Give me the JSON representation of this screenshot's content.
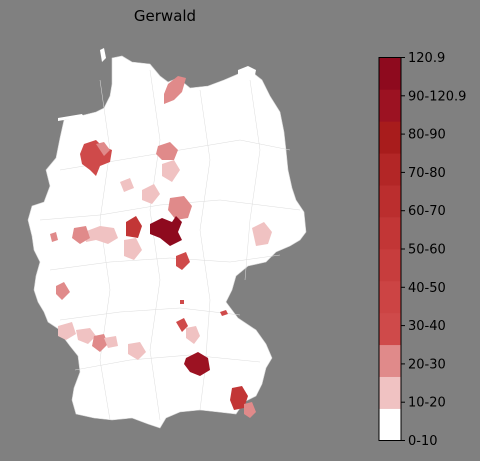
{
  "title": "Gerwald",
  "colorbar": {
    "min": 0,
    "max": 120.9,
    "bins": [
      {
        "label": "0-10",
        "color": "#ffffff"
      },
      {
        "label": "10-20",
        "color": "#f0c2c2"
      },
      {
        "label": "20-30",
        "color": "#e08a8a"
      },
      {
        "label": "30-40",
        "color": "#cf4a4a"
      },
      {
        "label": "40-50",
        "color": "#cc4444"
      },
      {
        "label": "50-60",
        "color": "#c73d3d"
      },
      {
        "label": "60-70",
        "color": "#c23636"
      },
      {
        "label": "70-80",
        "color": "#bb2e2e"
      },
      {
        "label": "80-90",
        "color": "#b32626"
      },
      {
        "label": "90-120.9",
        "color": "#a81c1c"
      },
      {
        "label": "",
        "color": "#9c1222"
      },
      {
        "label": "120.9",
        "color": "#8e0a1e"
      }
    ],
    "tick_labels": [
      "0-10",
      "10-20",
      "20-30",
      "30-40",
      "40-50",
      "50-60",
      "60-70",
      "70-80",
      "80-90",
      "90-120.9",
      "120.9"
    ]
  },
  "colors": {
    "background": "#808080",
    "land": "#ffffff",
    "border": "#cfcfcf"
  }
}
